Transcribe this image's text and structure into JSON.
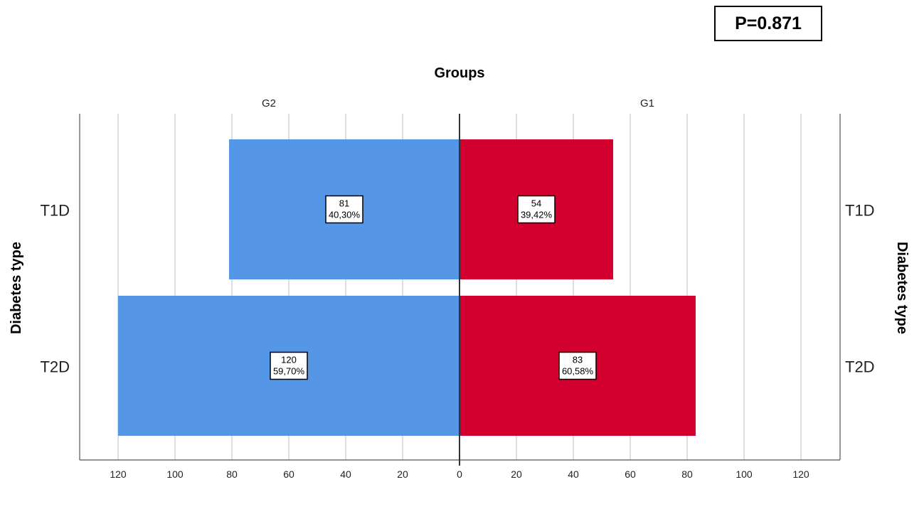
{
  "annotation": {
    "p_value": "P=0.871"
  },
  "chart_data": {
    "type": "bar",
    "orientation": "horizontal",
    "layout": "back-to-back",
    "title": "Groups",
    "ylabel_left": "Diabetes type",
    "ylabel_right": "Diabetes type",
    "categories": [
      "T1D",
      "T2D"
    ],
    "xlim": [
      0,
      130
    ],
    "xticks": [
      0,
      20,
      40,
      60,
      80,
      100,
      120
    ],
    "grid": true,
    "series": [
      {
        "name": "G2",
        "side": "left",
        "color": "#5596e6",
        "values": [
          81,
          120
        ],
        "labels": [
          "40,30%",
          "59,70%"
        ]
      },
      {
        "name": "G1",
        "side": "right",
        "color": "#d2002e",
        "values": [
          54,
          83
        ],
        "labels": [
          "39,42%",
          "60,58%"
        ]
      }
    ]
  }
}
